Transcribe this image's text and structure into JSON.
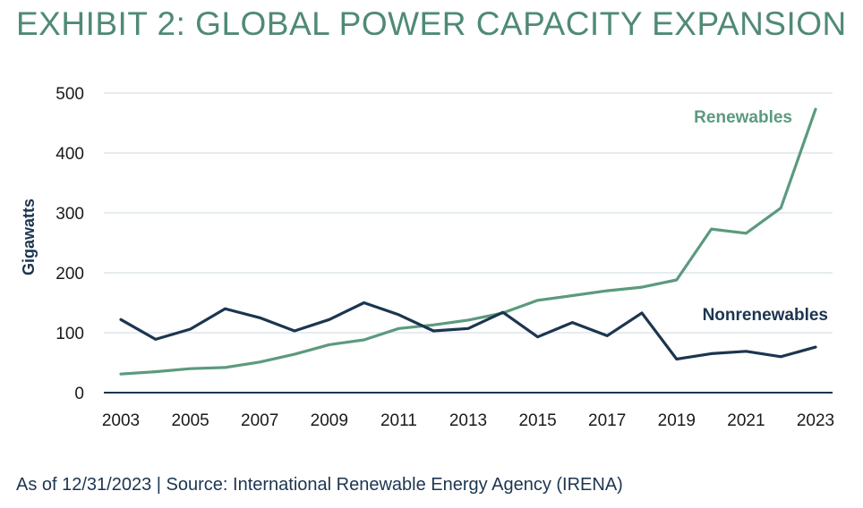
{
  "title": "EXHIBIT 2: GLOBAL POWER CAPACITY EXPANSION",
  "source": "As of 12/31/2023 | Source: International Renewable Energy Agency (IRENA)",
  "colors": {
    "title": "#4f8a76",
    "renewables": "#5b9a7e",
    "nonrenewables": "#1c3550",
    "grid": "#dde6ea",
    "axis": "#1c3550"
  },
  "chart_data": {
    "type": "line",
    "ylabel": "Gigawatts",
    "xlabel": "",
    "ylim": [
      0,
      500
    ],
    "yticks": [
      "0",
      "100",
      "200",
      "300",
      "400",
      "500"
    ],
    "xticks": [
      "2003",
      "2005",
      "2007",
      "2009",
      "2011",
      "2013",
      "2015",
      "2017",
      "2019",
      "2021",
      "2023"
    ],
    "grid": "horizontal",
    "x": [
      2003,
      2004,
      2005,
      2006,
      2007,
      2008,
      2009,
      2010,
      2011,
      2012,
      2013,
      2014,
      2015,
      2016,
      2017,
      2018,
      2019,
      2020,
      2021,
      2022,
      2023
    ],
    "series": [
      {
        "name": "Renewables",
        "values": [
          31,
          35,
          40,
          42,
          51,
          64,
          80,
          88,
          107,
          113,
          121,
          133,
          154,
          162,
          170,
          176,
          188,
          273,
          266,
          308,
          473
        ]
      },
      {
        "name": "Nonrenewables",
        "values": [
          122,
          89,
          106,
          140,
          125,
          103,
          122,
          150,
          130,
          103,
          107,
          134,
          93,
          117,
          95,
          133,
          56,
          65,
          69,
          60,
          76
        ]
      }
    ]
  }
}
